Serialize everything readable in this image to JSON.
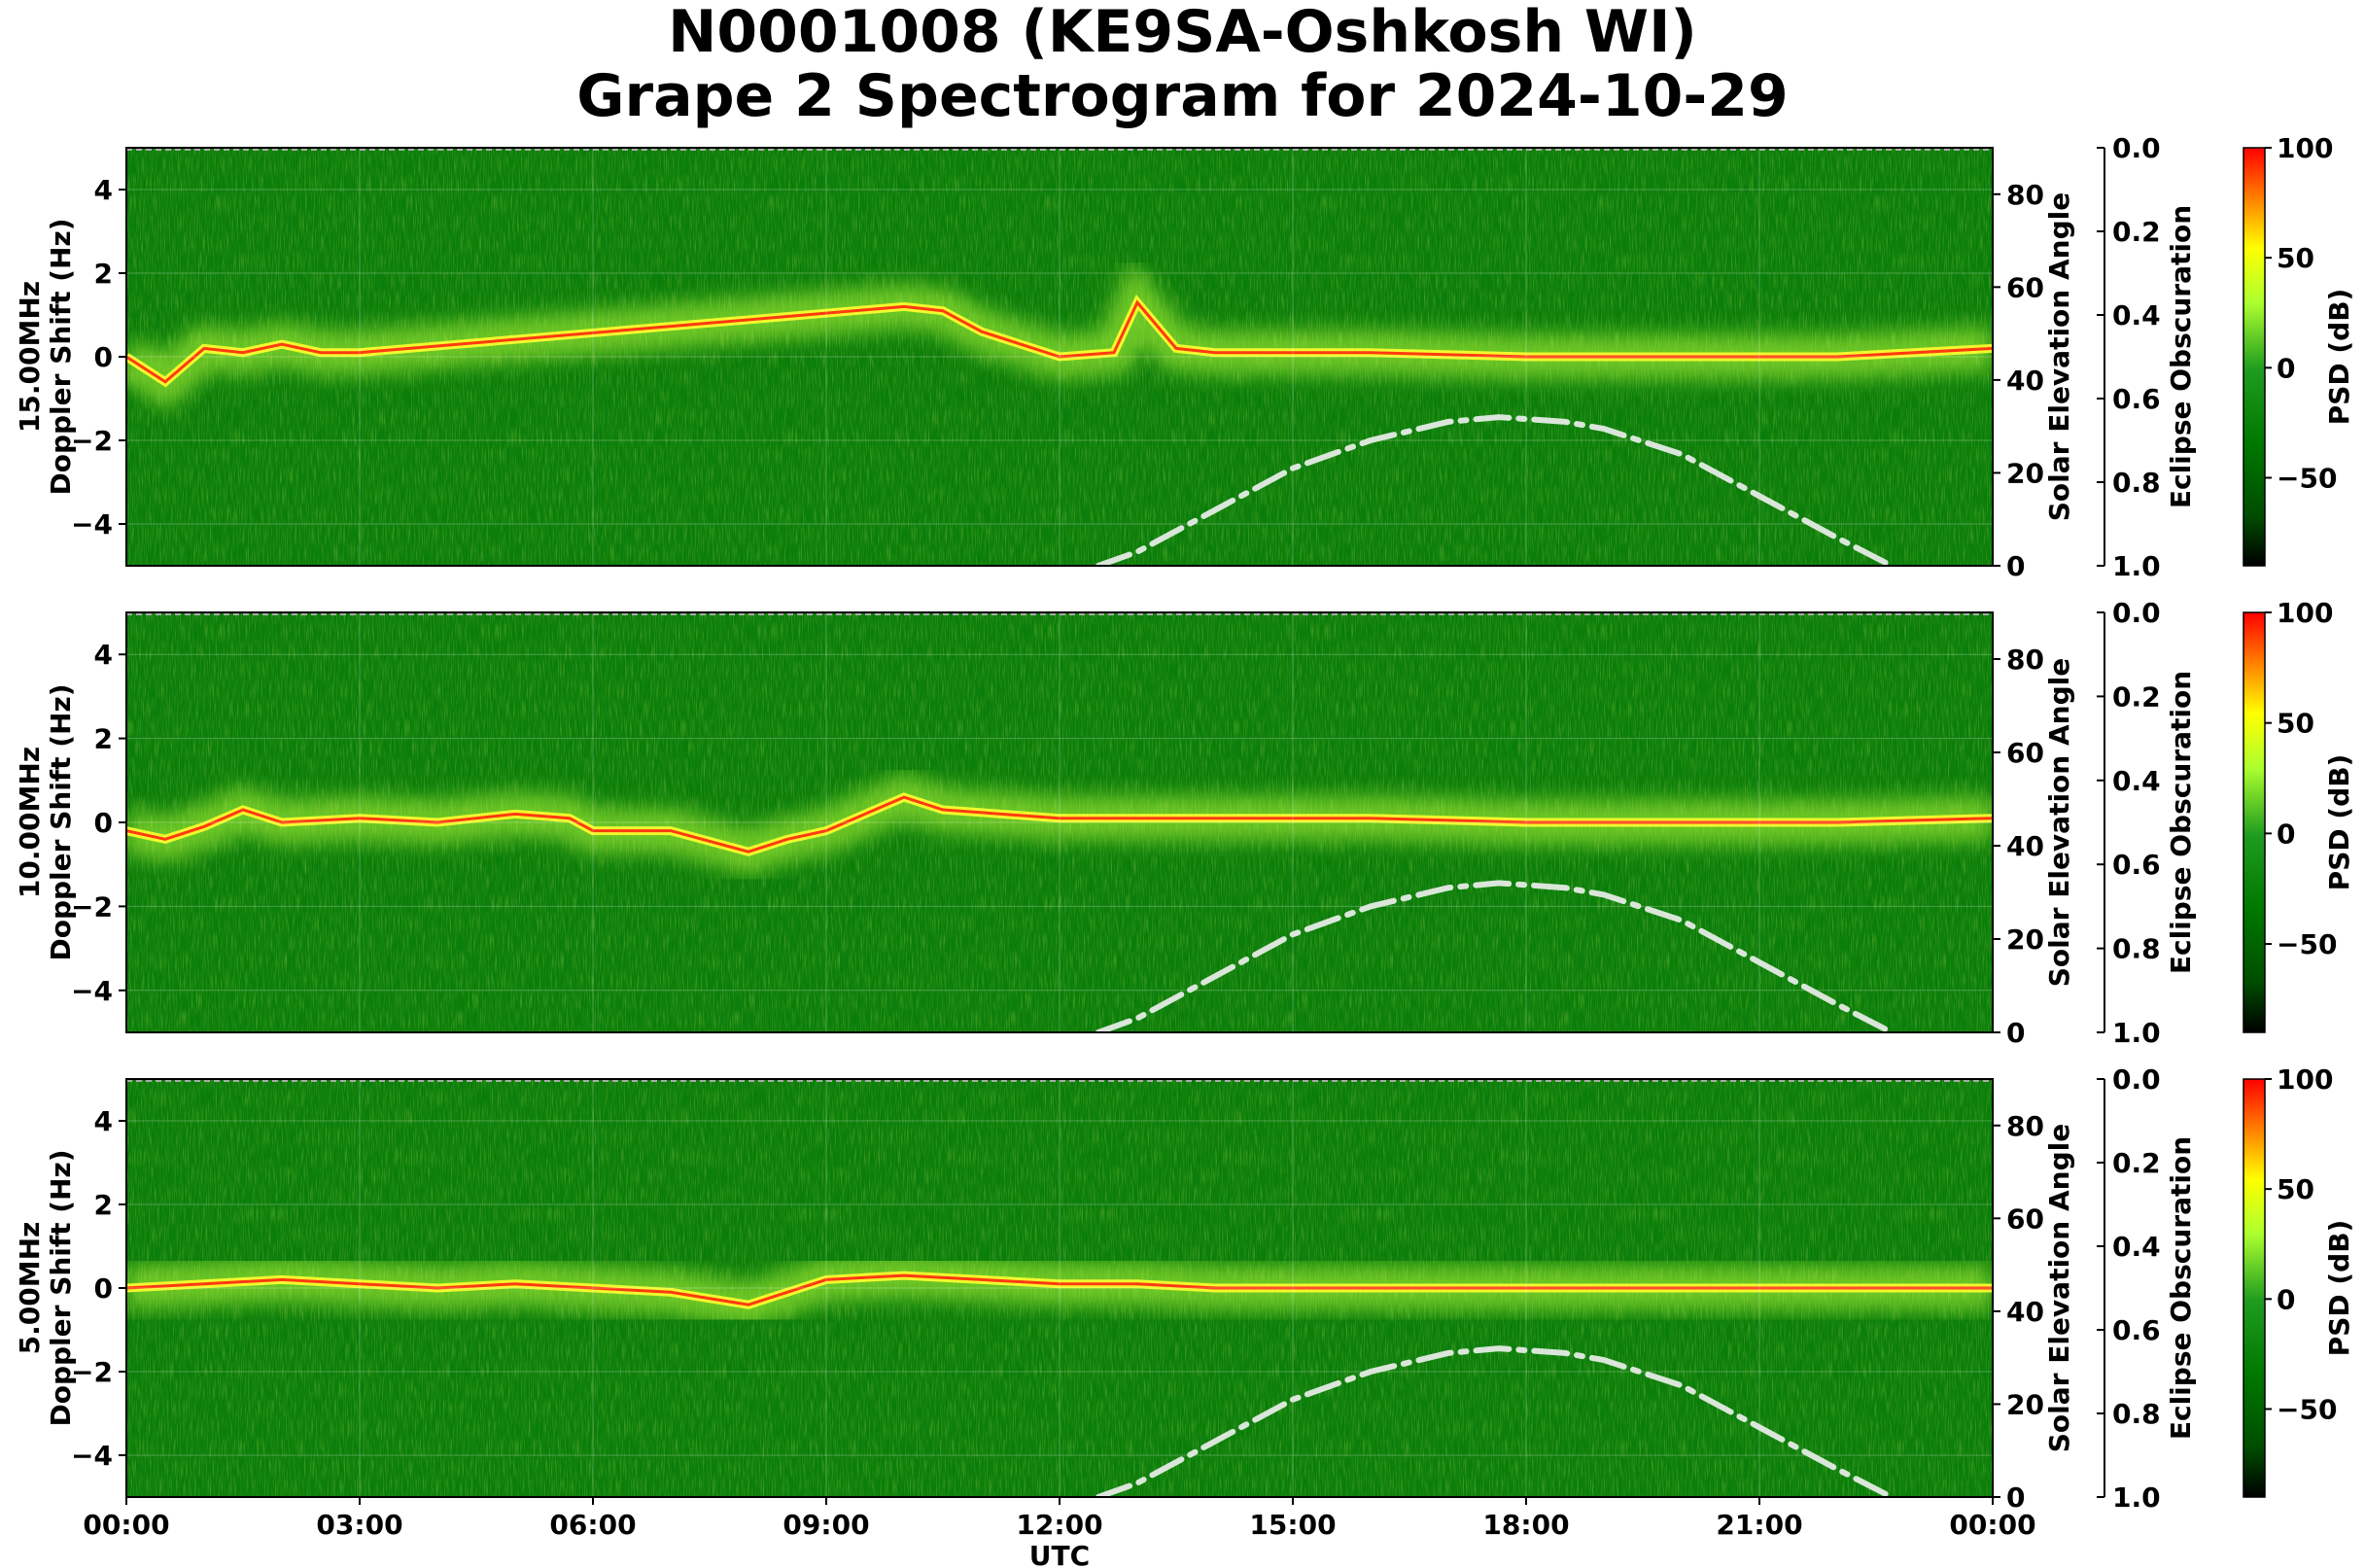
{
  "title": {
    "line1": "N0001008 (KE9SA-Oshkosh WI)",
    "line2": "Grape 2 Spectrogram for 2024-10-29"
  },
  "colors": {
    "psd_colormap": [
      "#000000",
      "#006400",
      "#008000",
      "#adff2f",
      "#ffff00",
      "#ff0000"
    ],
    "elevation_curve": "#d9e6d9"
  },
  "chart_data": [
    {
      "type": "heatmap",
      "panel": "15.00MHz",
      "ylabel_left": [
        "15.00MHz",
        "Doppler Shift (Hz)"
      ],
      "yticks_left": [
        "−4",
        "−2",
        "0",
        "2",
        "4"
      ],
      "ylim_left": [
        -5,
        5
      ],
      "ylabel_right": "Solar Elevation Angle",
      "yticks_right": [
        "0",
        "20",
        "40",
        "60",
        "80"
      ],
      "ylim_right": [
        0,
        90
      ],
      "eclipse_label": "Eclipse Obscuration",
      "eclipse_ticks": [
        "0.0",
        "0.2",
        "0.4",
        "0.6",
        "0.8",
        "1.0"
      ],
      "colorbar_label": "PSD (dB)",
      "colorbar_ticks": [
        "100",
        "50",
        "0",
        "−50"
      ],
      "colorbar_range": [
        -90,
        100
      ],
      "grid": true,
      "solar_elevation": {
        "x_hours": [
          12.5,
          13,
          14,
          15,
          16,
          17,
          17.65,
          18.5,
          19,
          20,
          21,
          22,
          22.7
        ],
        "y_deg": [
          0,
          3,
          12,
          21,
          27,
          31,
          32,
          31,
          29.5,
          24,
          15,
          6,
          0
        ]
      },
      "doppler_trace": {
        "x_hours": [
          0,
          0.5,
          1,
          1.5,
          2,
          2.5,
          3,
          10,
          10.5,
          11,
          12,
          12.7,
          13,
          13.5,
          14,
          16,
          18,
          20,
          22,
          24
        ],
        "y_hz": [
          0,
          -0.6,
          0.2,
          0.1,
          0.3,
          0.1,
          0.1,
          1.2,
          1.1,
          0.6,
          0.0,
          0.1,
          1.3,
          0.2,
          0.1,
          0.1,
          0.0,
          0.0,
          0.0,
          0.2
        ]
      }
    },
    {
      "type": "heatmap",
      "panel": "10.00MHz",
      "ylabel_left": [
        "10.00MHz",
        "Doppler Shift (Hz)"
      ],
      "yticks_left": [
        "−4",
        "−2",
        "0",
        "2",
        "4"
      ],
      "ylim_left": [
        -5,
        5
      ],
      "ylabel_right": "Solar Elevation Angle",
      "yticks_right": [
        "0",
        "20",
        "40",
        "60",
        "80"
      ],
      "ylim_right": [
        0,
        90
      ],
      "eclipse_label": "Eclipse Obscuration",
      "eclipse_ticks": [
        "0.0",
        "0.2",
        "0.4",
        "0.6",
        "0.8",
        "1.0"
      ],
      "colorbar_label": "PSD (dB)",
      "colorbar_ticks": [
        "100",
        "50",
        "0",
        "−50"
      ],
      "colorbar_range": [
        -90,
        100
      ],
      "grid": true,
      "solar_elevation": {
        "x_hours": [
          12.5,
          13,
          14,
          15,
          16,
          17,
          17.65,
          18.5,
          19,
          20,
          21,
          22,
          22.7
        ],
        "y_deg": [
          0,
          3,
          12,
          21,
          27,
          31,
          32,
          31,
          29.5,
          24,
          15,
          6,
          0
        ]
      },
      "doppler_trace": {
        "x_hours": [
          0,
          0.5,
          1,
          1.5,
          2,
          3,
          4,
          5,
          5.7,
          6,
          7,
          8,
          8.5,
          9,
          10,
          10.5,
          12,
          14,
          16,
          18,
          20,
          22,
          24
        ],
        "y_hz": [
          -0.2,
          -0.4,
          -0.1,
          0.3,
          0.0,
          0.1,
          0.0,
          0.2,
          0.1,
          -0.2,
          -0.2,
          -0.7,
          -0.4,
          -0.2,
          0.6,
          0.3,
          0.1,
          0.1,
          0.1,
          0.0,
          0.0,
          0.0,
          0.1
        ]
      }
    },
    {
      "type": "heatmap",
      "panel": "5.00MHz",
      "ylabel_left": [
        "5.00MHz",
        "Doppler Shift (Hz)"
      ],
      "yticks_left": [
        "−4",
        "−2",
        "0",
        "2",
        "4"
      ],
      "ylim_left": [
        -5,
        5
      ],
      "ylabel_right": "Solar Elevation Angle",
      "yticks_right": [
        "0",
        "20",
        "40",
        "60",
        "80"
      ],
      "ylim_right": [
        0,
        90
      ],
      "eclipse_label": "Eclipse Obscuration",
      "eclipse_ticks": [
        "0.0",
        "0.2",
        "0.4",
        "0.6",
        "0.8",
        "1.0"
      ],
      "colorbar_label": "PSD (dB)",
      "colorbar_ticks": [
        "100",
        "50",
        "0",
        "−50"
      ],
      "colorbar_range": [
        -90,
        100
      ],
      "grid": true,
      "xlabel": "UTC",
      "xticks": [
        "00:00",
        "03:00",
        "06:00",
        "09:00",
        "12:00",
        "15:00",
        "18:00",
        "21:00",
        "00:00"
      ],
      "solar_elevation": {
        "x_hours": [
          12.5,
          13,
          14,
          15,
          16,
          17,
          17.65,
          18.5,
          19,
          20,
          21,
          22,
          22.7
        ],
        "y_deg": [
          0,
          3,
          12,
          21,
          27,
          31,
          32,
          31,
          29.5,
          24,
          15,
          6,
          0
        ]
      },
      "doppler_trace": {
        "x_hours": [
          0,
          1,
          2,
          3,
          4,
          5,
          6,
          7,
          8,
          8.5,
          9,
          10,
          11,
          12,
          13,
          14,
          15,
          24
        ],
        "y_hz": [
          0.0,
          0.1,
          0.2,
          0.1,
          0.0,
          0.1,
          0.0,
          -0.1,
          -0.4,
          -0.1,
          0.2,
          0.3,
          0.2,
          0.1,
          0.1,
          0.0,
          0.0,
          0.0
        ]
      }
    }
  ]
}
